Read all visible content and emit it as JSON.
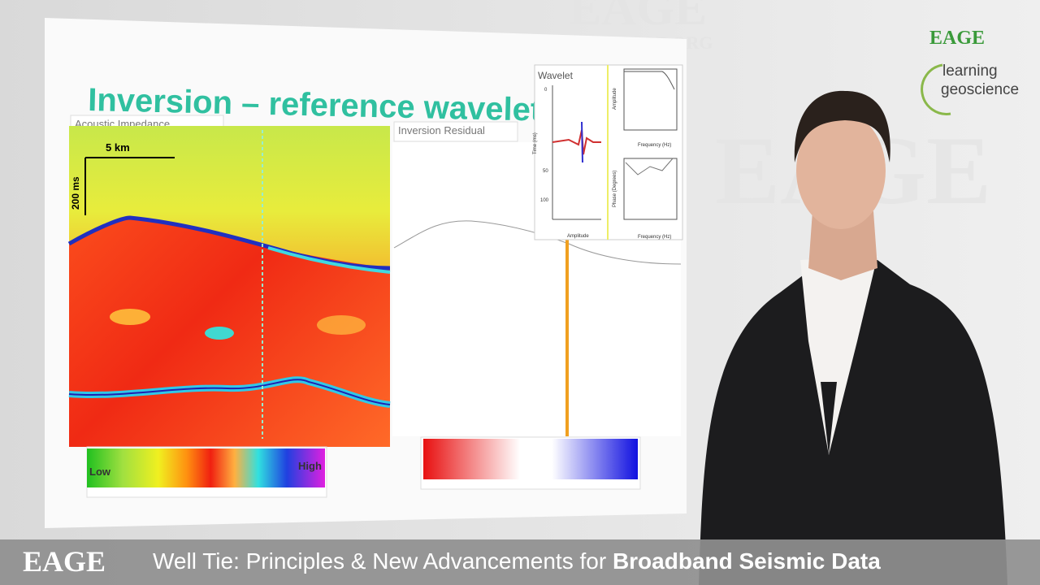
{
  "watermark": {
    "logo": "EAGE",
    "url": "WWW.EAGE.ORG"
  },
  "brand": {
    "logo": "EAGE",
    "line1": "learning",
    "line2": "geoscience"
  },
  "slide": {
    "title": "Inversion – reference wavelet",
    "left_panel": {
      "label": "Acoustic Impedance",
      "scale_x": "5 km",
      "scale_y": "200 ms",
      "colorbar_low": "Low",
      "colorbar_high": "High"
    },
    "right_panel": {
      "label": "Inversion Residual"
    },
    "wavelet": {
      "title": "Wavelet",
      "y_axis": "Time (ms)",
      "x_axis": "Amplitude",
      "amp_axis": "Amplitude",
      "phase_axis": "Phase (Degrees)",
      "freq_axis": "Frequency (Hz)",
      "time_ticks": [
        "0",
        "50",
        "100"
      ]
    }
  },
  "footer": {
    "logo": "EAGE",
    "title_regular": "Well Tie: Principles & New Advancements for ",
    "title_bold": "Broadband Seismic Data"
  }
}
